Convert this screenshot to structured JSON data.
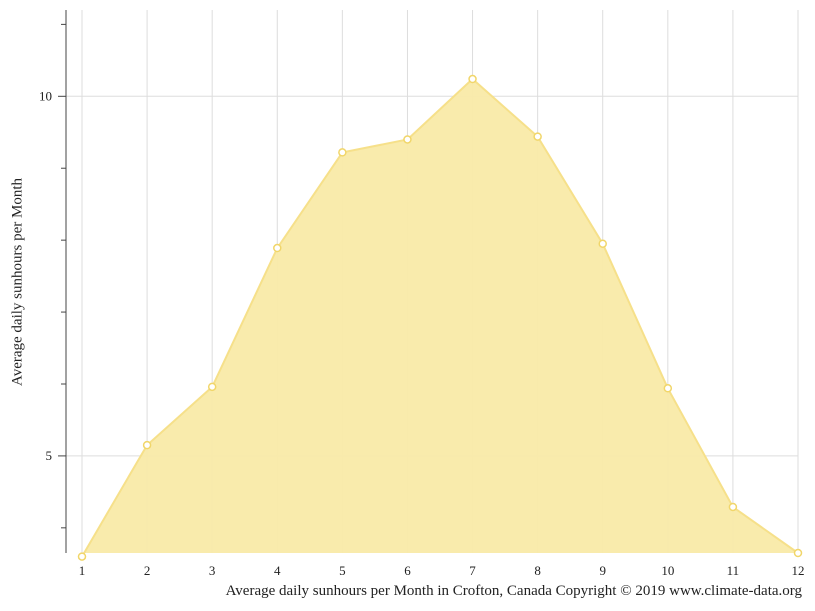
{
  "chart_data": {
    "type": "area",
    "title": "",
    "caption": "Average daily sunhours per Month in Crofton, Canada Copyright © 2019 www.climate-data.org",
    "xlabel": "",
    "ylabel": "Average daily sunhours per Month",
    "x": [
      1,
      2,
      3,
      4,
      5,
      6,
      7,
      8,
      9,
      10,
      11,
      12
    ],
    "values": [
      3.6,
      5.15,
      5.96,
      7.89,
      9.22,
      9.4,
      10.24,
      9.44,
      7.95,
      5.94,
      4.29,
      3.65
    ],
    "xlim": [
      1,
      12
    ],
    "ylim": [
      3.65,
      11.2
    ],
    "yticks_labeled": [
      5,
      10
    ],
    "yticks_minor": [
      4,
      6,
      7,
      8,
      9,
      11
    ],
    "grid": true,
    "legend": "none",
    "colors": {
      "fill": "#f9eaa8",
      "line": "#f6e08a",
      "marker_stroke": "#f1d66a",
      "grid": "#dddddd",
      "axis": "#444444"
    }
  }
}
